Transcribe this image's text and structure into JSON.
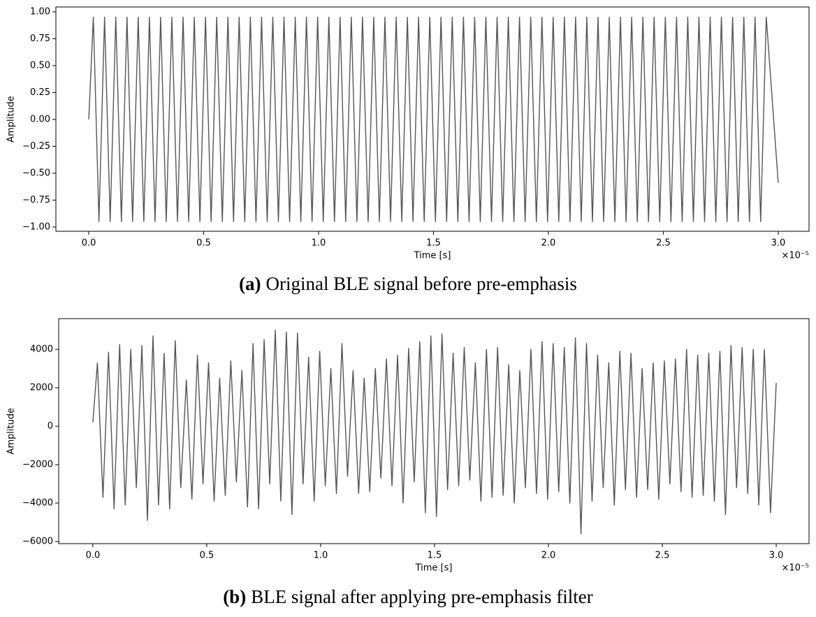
{
  "chart_data": [
    {
      "type": "line",
      "caption_label": "(a)",
      "caption_text": "Original BLE signal before pre-emphasis",
      "x_label": "Time [s]",
      "y_label": "Amplitude",
      "x_offset_label": "×10⁻⁵",
      "color": "#555555",
      "xlim": [
        -0.143,
        3.134
      ],
      "ylim": [
        -1.04,
        1.045
      ],
      "xticks": [
        {
          "value": 0,
          "label": "0.0"
        },
        {
          "value": 0.5,
          "label": "0.5"
        },
        {
          "value": 1,
          "label": "1.0"
        },
        {
          "value": 1.5,
          "label": "1.5"
        },
        {
          "value": 2,
          "label": "2.0"
        },
        {
          "value": 2.5,
          "label": "2.5"
        },
        {
          "value": 3,
          "label": "3.0"
        }
      ],
      "yticks": [
        {
          "value": -1,
          "label": "−1.00"
        },
        {
          "value": -0.75,
          "label": "−0.75"
        },
        {
          "value": -0.5,
          "label": "−0.50"
        },
        {
          "value": -0.25,
          "label": "−0.25"
        },
        {
          "value": 0,
          "label": "0.00"
        },
        {
          "value": 0.25,
          "label": "0.25"
        },
        {
          "value": 0.5,
          "label": "0.50"
        },
        {
          "value": 0.75,
          "label": "0.75"
        },
        {
          "value": 1,
          "label": "1.00"
        }
      ],
      "x": [
        0,
        0.02,
        0.0444,
        0.0688,
        0.0932,
        0.1176,
        0.142,
        0.1664,
        0.1908,
        0.2152,
        0.2396,
        0.264,
        0.2884,
        0.3128,
        0.3372,
        0.3616,
        0.386,
        0.4104,
        0.4348,
        0.4592,
        0.4836,
        0.508,
        0.5324,
        0.5568,
        0.5812,
        0.6056,
        0.63,
        0.6544,
        0.6788,
        0.7032,
        0.7276,
        0.752,
        0.7764,
        0.8008,
        0.8252,
        0.8496,
        0.874,
        0.8984,
        0.9228,
        0.9472,
        0.9716,
        0.996,
        1.0204,
        1.0448,
        1.0692,
        1.0936,
        1.118,
        1.1424,
        1.1668,
        1.1912,
        1.2156,
        1.24,
        1.2644,
        1.2888,
        1.3132,
        1.3376,
        1.362,
        1.3864,
        1.4108,
        1.4352,
        1.4596,
        1.484,
        1.5084,
        1.5328,
        1.5572,
        1.5816,
        1.606,
        1.6304,
        1.6548,
        1.6792,
        1.7036,
        1.728,
        1.7524,
        1.7768,
        1.8012,
        1.8256,
        1.85,
        1.8744,
        1.8988,
        1.9232,
        1.9476,
        1.972,
        1.9964,
        2.0208,
        2.0452,
        2.0696,
        2.094,
        2.1184,
        2.1428,
        2.1672,
        2.1916,
        2.216,
        2.2404,
        2.2648,
        2.2892,
        2.3136,
        2.338,
        2.3624,
        2.3868,
        2.4112,
        2.4356,
        2.46,
        2.4844,
        2.5088,
        2.5332,
        2.5576,
        2.582,
        2.6064,
        2.6308,
        2.6552,
        2.6796,
        2.704,
        2.7284,
        2.7528,
        2.7772,
        2.8016,
        2.826,
        2.8504,
        2.8748,
        2.8992,
        2.9236,
        2.948,
        3.0
      ],
      "values": [
        0,
        0.95,
        -0.95,
        0.95,
        -0.95,
        0.95,
        -0.95,
        0.95,
        -0.95,
        0.95,
        -0.95,
        0.95,
        -0.95,
        0.95,
        -0.95,
        0.95,
        -0.95,
        0.95,
        -0.95,
        0.95,
        -0.95,
        0.95,
        -0.95,
        0.95,
        -0.95,
        0.95,
        -0.95,
        0.95,
        -0.95,
        0.95,
        -0.95,
        0.95,
        -0.95,
        0.95,
        -0.95,
        0.95,
        -0.95,
        0.95,
        -0.95,
        0.95,
        -0.95,
        0.95,
        -0.95,
        0.95,
        -0.95,
        0.95,
        -0.95,
        0.95,
        -0.95,
        0.95,
        -0.95,
        0.95,
        -0.95,
        0.95,
        -0.95,
        0.95,
        -0.95,
        0.95,
        -0.95,
        0.95,
        -0.95,
        0.95,
        -0.95,
        0.95,
        -0.95,
        0.95,
        -0.95,
        0.95,
        -0.95,
        0.95,
        -0.95,
        0.95,
        -0.95,
        0.95,
        -0.95,
        0.95,
        -0.95,
        0.95,
        -0.95,
        0.95,
        -0.95,
        0.95,
        -0.95,
        0.95,
        -0.95,
        0.95,
        -0.95,
        0.95,
        -0.95,
        0.95,
        -0.95,
        0.95,
        -0.95,
        0.95,
        -0.95,
        0.95,
        -0.95,
        0.95,
        -0.95,
        0.95,
        -0.95,
        0.95,
        -0.95,
        0.95,
        -0.95,
        0.95,
        -0.95,
        0.95,
        -0.95,
        0.95,
        -0.95,
        0.95,
        -0.95,
        0.95,
        -0.95,
        0.95,
        -0.95,
        0.95,
        -0.95,
        0.95,
        -0.95,
        0.95,
        -0.59
      ]
    },
    {
      "type": "line",
      "caption_label": "(b)",
      "caption_text": "BLE signal after applying pre-emphasis filter",
      "x_label": "Time [s]",
      "y_label": "Amplitude",
      "x_offset_label": "×10⁻⁵",
      "color": "#555555",
      "xlim": [
        -0.15,
        3.144
      ],
      "ylim": [
        -6109,
        5600
      ],
      "xticks": [
        {
          "value": 0,
          "label": "0.0"
        },
        {
          "value": 0.5,
          "label": "0.5"
        },
        {
          "value": 1,
          "label": "1.0"
        },
        {
          "value": 1.5,
          "label": "1.5"
        },
        {
          "value": 2,
          "label": "2.0"
        },
        {
          "value": 2.5,
          "label": "2.5"
        },
        {
          "value": 3,
          "label": "3.0"
        }
      ],
      "yticks": [
        {
          "value": -6000,
          "label": "−6000"
        },
        {
          "value": -4000,
          "label": "−4000"
        },
        {
          "value": -2000,
          "label": "−2000"
        },
        0,
        2000,
        4000
      ],
      "x": [
        0,
        0.02,
        0.0444,
        0.0688,
        0.0932,
        0.1176,
        0.142,
        0.1664,
        0.1908,
        0.2152,
        0.2396,
        0.264,
        0.2884,
        0.3128,
        0.3372,
        0.3616,
        0.386,
        0.4104,
        0.4348,
        0.4592,
        0.4836,
        0.508,
        0.5324,
        0.5568,
        0.5812,
        0.6056,
        0.63,
        0.6544,
        0.6788,
        0.7032,
        0.7276,
        0.752,
        0.7764,
        0.8008,
        0.8252,
        0.8496,
        0.874,
        0.8984,
        0.9228,
        0.9472,
        0.9716,
        0.996,
        1.0204,
        1.0448,
        1.0692,
        1.0936,
        1.118,
        1.1424,
        1.1668,
        1.1912,
        1.2156,
        1.24,
        1.2644,
        1.2888,
        1.3132,
        1.3376,
        1.362,
        1.3864,
        1.4108,
        1.4352,
        1.4596,
        1.484,
        1.5084,
        1.5328,
        1.5572,
        1.5816,
        1.606,
        1.6304,
        1.6548,
        1.6792,
        1.7036,
        1.728,
        1.7524,
        1.7768,
        1.8012,
        1.8256,
        1.85,
        1.8744,
        1.8988,
        1.9232,
        1.9476,
        1.972,
        1.9964,
        2.0208,
        2.0452,
        2.0696,
        2.094,
        2.1184,
        2.1428,
        2.1672,
        2.1916,
        2.216,
        2.2404,
        2.2648,
        2.2892,
        2.3136,
        2.338,
        2.3624,
        2.3868,
        2.4112,
        2.4356,
        2.46,
        2.4844,
        2.5088,
        2.5332,
        2.5576,
        2.582,
        2.6064,
        2.6308,
        2.6552,
        2.6796,
        2.704,
        2.7284,
        2.7528,
        2.7772,
        2.8016,
        2.826,
        2.8504,
        2.8748,
        2.8992,
        2.9236,
        2.948,
        2.975,
        3.0
      ],
      "values": [
        200,
        3300,
        -3700,
        3850,
        -4300,
        4250,
        -4100,
        4000,
        -3200,
        4200,
        -4900,
        4700,
        -4100,
        3800,
        -4300,
        4450,
        -3200,
        2400,
        -3800,
        3700,
        -3000,
        3300,
        -3900,
        2500,
        -3600,
        3400,
        -2900,
        2900,
        -4200,
        4300,
        -4300,
        4500,
        -3000,
        5000,
        -3900,
        4900,
        -4600,
        4850,
        -3000,
        3600,
        -3900,
        3900,
        -3100,
        3000,
        -3500,
        4300,
        -2600,
        2900,
        -3500,
        2500,
        -3400,
        3000,
        -2700,
        3500,
        -3100,
        3700,
        -4000,
        4050,
        -2900,
        4400,
        -4500,
        4700,
        -4700,
        4800,
        -3300,
        3800,
        -3100,
        4100,
        -2800,
        3300,
        -3900,
        4000,
        -3700,
        4100,
        -3600,
        3200,
        -4000,
        2900,
        -3200,
        4000,
        -3500,
        4400,
        -3800,
        4300,
        -3400,
        4100,
        -4000,
        4600,
        -5600,
        4300,
        -3900,
        3700,
        -3200,
        3300,
        -4100,
        3900,
        -3300,
        3800,
        -3700,
        3000,
        -3300,
        3300,
        -3800,
        3400,
        -3000,
        3500,
        -3400,
        4000,
        -3700,
        3700,
        -3600,
        3800,
        -3900,
        3900,
        -4600,
        4200,
        -3200,
        4100,
        -3500,
        4000,
        -4100,
        4000,
        -4500,
        2250
      ]
    }
  ]
}
